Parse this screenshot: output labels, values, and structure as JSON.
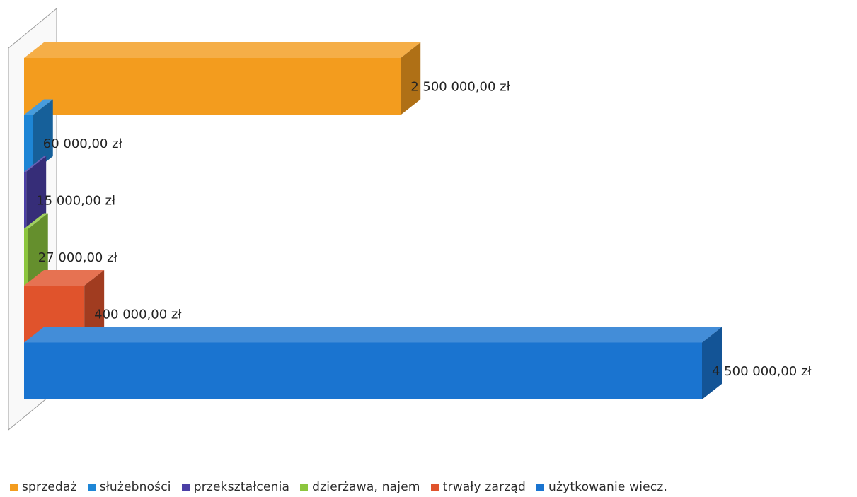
{
  "chart_data": {
    "type": "bar",
    "orientation": "horizontal",
    "style": "3d",
    "grid": false,
    "legend_position": "bottom",
    "series": [
      {
        "name": "sprzedaż",
        "value": 2500000,
        "label": "2 500 000,00 zł",
        "color": "#f39c1e"
      },
      {
        "name": "służebności",
        "value": 60000,
        "label": "60 000,00 zł",
        "color": "#1e86d6"
      },
      {
        "name": "przekształcenia",
        "value": 15000,
        "label": "15 000,00 zł",
        "color": "#4b3fa6"
      },
      {
        "name": "dzierżawa, najem",
        "value": 27000,
        "label": "27 000,00 zł",
        "color": "#8cc63e"
      },
      {
        "name": "trwały zarząd",
        "value": 400000,
        "label": "400 000,00 zł",
        "color": "#e0532c"
      },
      {
        "name": "użytkowanie wiecz.",
        "value": 4500000,
        "label": "4 500 000,00 zł",
        "color": "#1a74d0"
      }
    ]
  }
}
